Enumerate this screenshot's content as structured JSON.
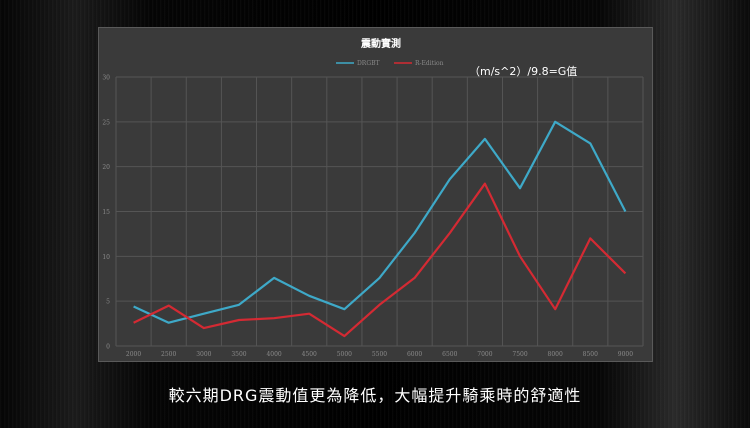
{
  "chart_data": {
    "type": "line",
    "title": "震動實測",
    "annotation": "（m/s^2）/9.8=G值",
    "x": [
      2000,
      2500,
      3000,
      3500,
      4000,
      4500,
      5000,
      5500,
      6000,
      6500,
      7000,
      7500,
      8000,
      8500,
      9000
    ],
    "x_tick_labels": [
      "2000",
      "2500",
      "3000",
      "3500",
      "4000",
      "4500",
      "5000",
      "5500",
      "6000",
      "6500",
      "7000",
      "7500",
      "8000",
      "8500",
      "9000"
    ],
    "ylim": [
      0,
      30
    ],
    "y_ticks": [
      0,
      5,
      10,
      15,
      20,
      25,
      30
    ],
    "grid": true,
    "legend_position": "top-center",
    "series": [
      {
        "name": "DRGBT",
        "color": "#3ea9c8",
        "values": [
          4.4,
          2.6,
          3.6,
          4.6,
          7.6,
          5.6,
          4.1,
          7.6,
          12.6,
          18.6,
          23.1,
          17.6,
          25.0,
          22.6,
          15.0
        ]
      },
      {
        "name": "R-Edition",
        "color": "#d42a33",
        "values": [
          2.6,
          4.5,
          2.0,
          2.9,
          3.1,
          3.6,
          1.1,
          4.6,
          7.6,
          12.6,
          18.1,
          10.0,
          4.1,
          12.0,
          8.1
        ]
      }
    ]
  },
  "caption": "較六期DRG震動值更為降低，大幅提升騎乘時的舒適性"
}
